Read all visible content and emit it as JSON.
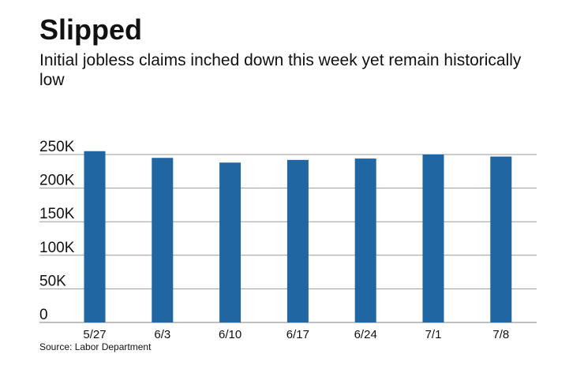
{
  "title": "Slipped",
  "subtitle": "Initial jobless claims inched down this week yet remain historically low",
  "source": "Source: Labor Department",
  "colors": {
    "bar": "#1f66a3",
    "grid": "#9a9a9a",
    "text": "#111111"
  },
  "chart_data": {
    "type": "bar",
    "categories": [
      "5/27",
      "6/3",
      "6/10",
      "6/17",
      "6/24",
      "7/1",
      "7/8"
    ],
    "values": [
      255000,
      245000,
      238000,
      242000,
      244000,
      250000,
      247000
    ],
    "title": "Slipped",
    "subtitle": "Initial jobless claims inched down this week yet remain historically low",
    "xlabel": "",
    "ylabel": "",
    "ylim": [
      0,
      250000
    ],
    "yticks": [
      0,
      50000,
      100000,
      150000,
      200000,
      250000
    ],
    "ytick_labels": [
      "0",
      "50K",
      "100K",
      "150K",
      "200K",
      "250K"
    ],
    "grid": true,
    "legend": "none"
  }
}
